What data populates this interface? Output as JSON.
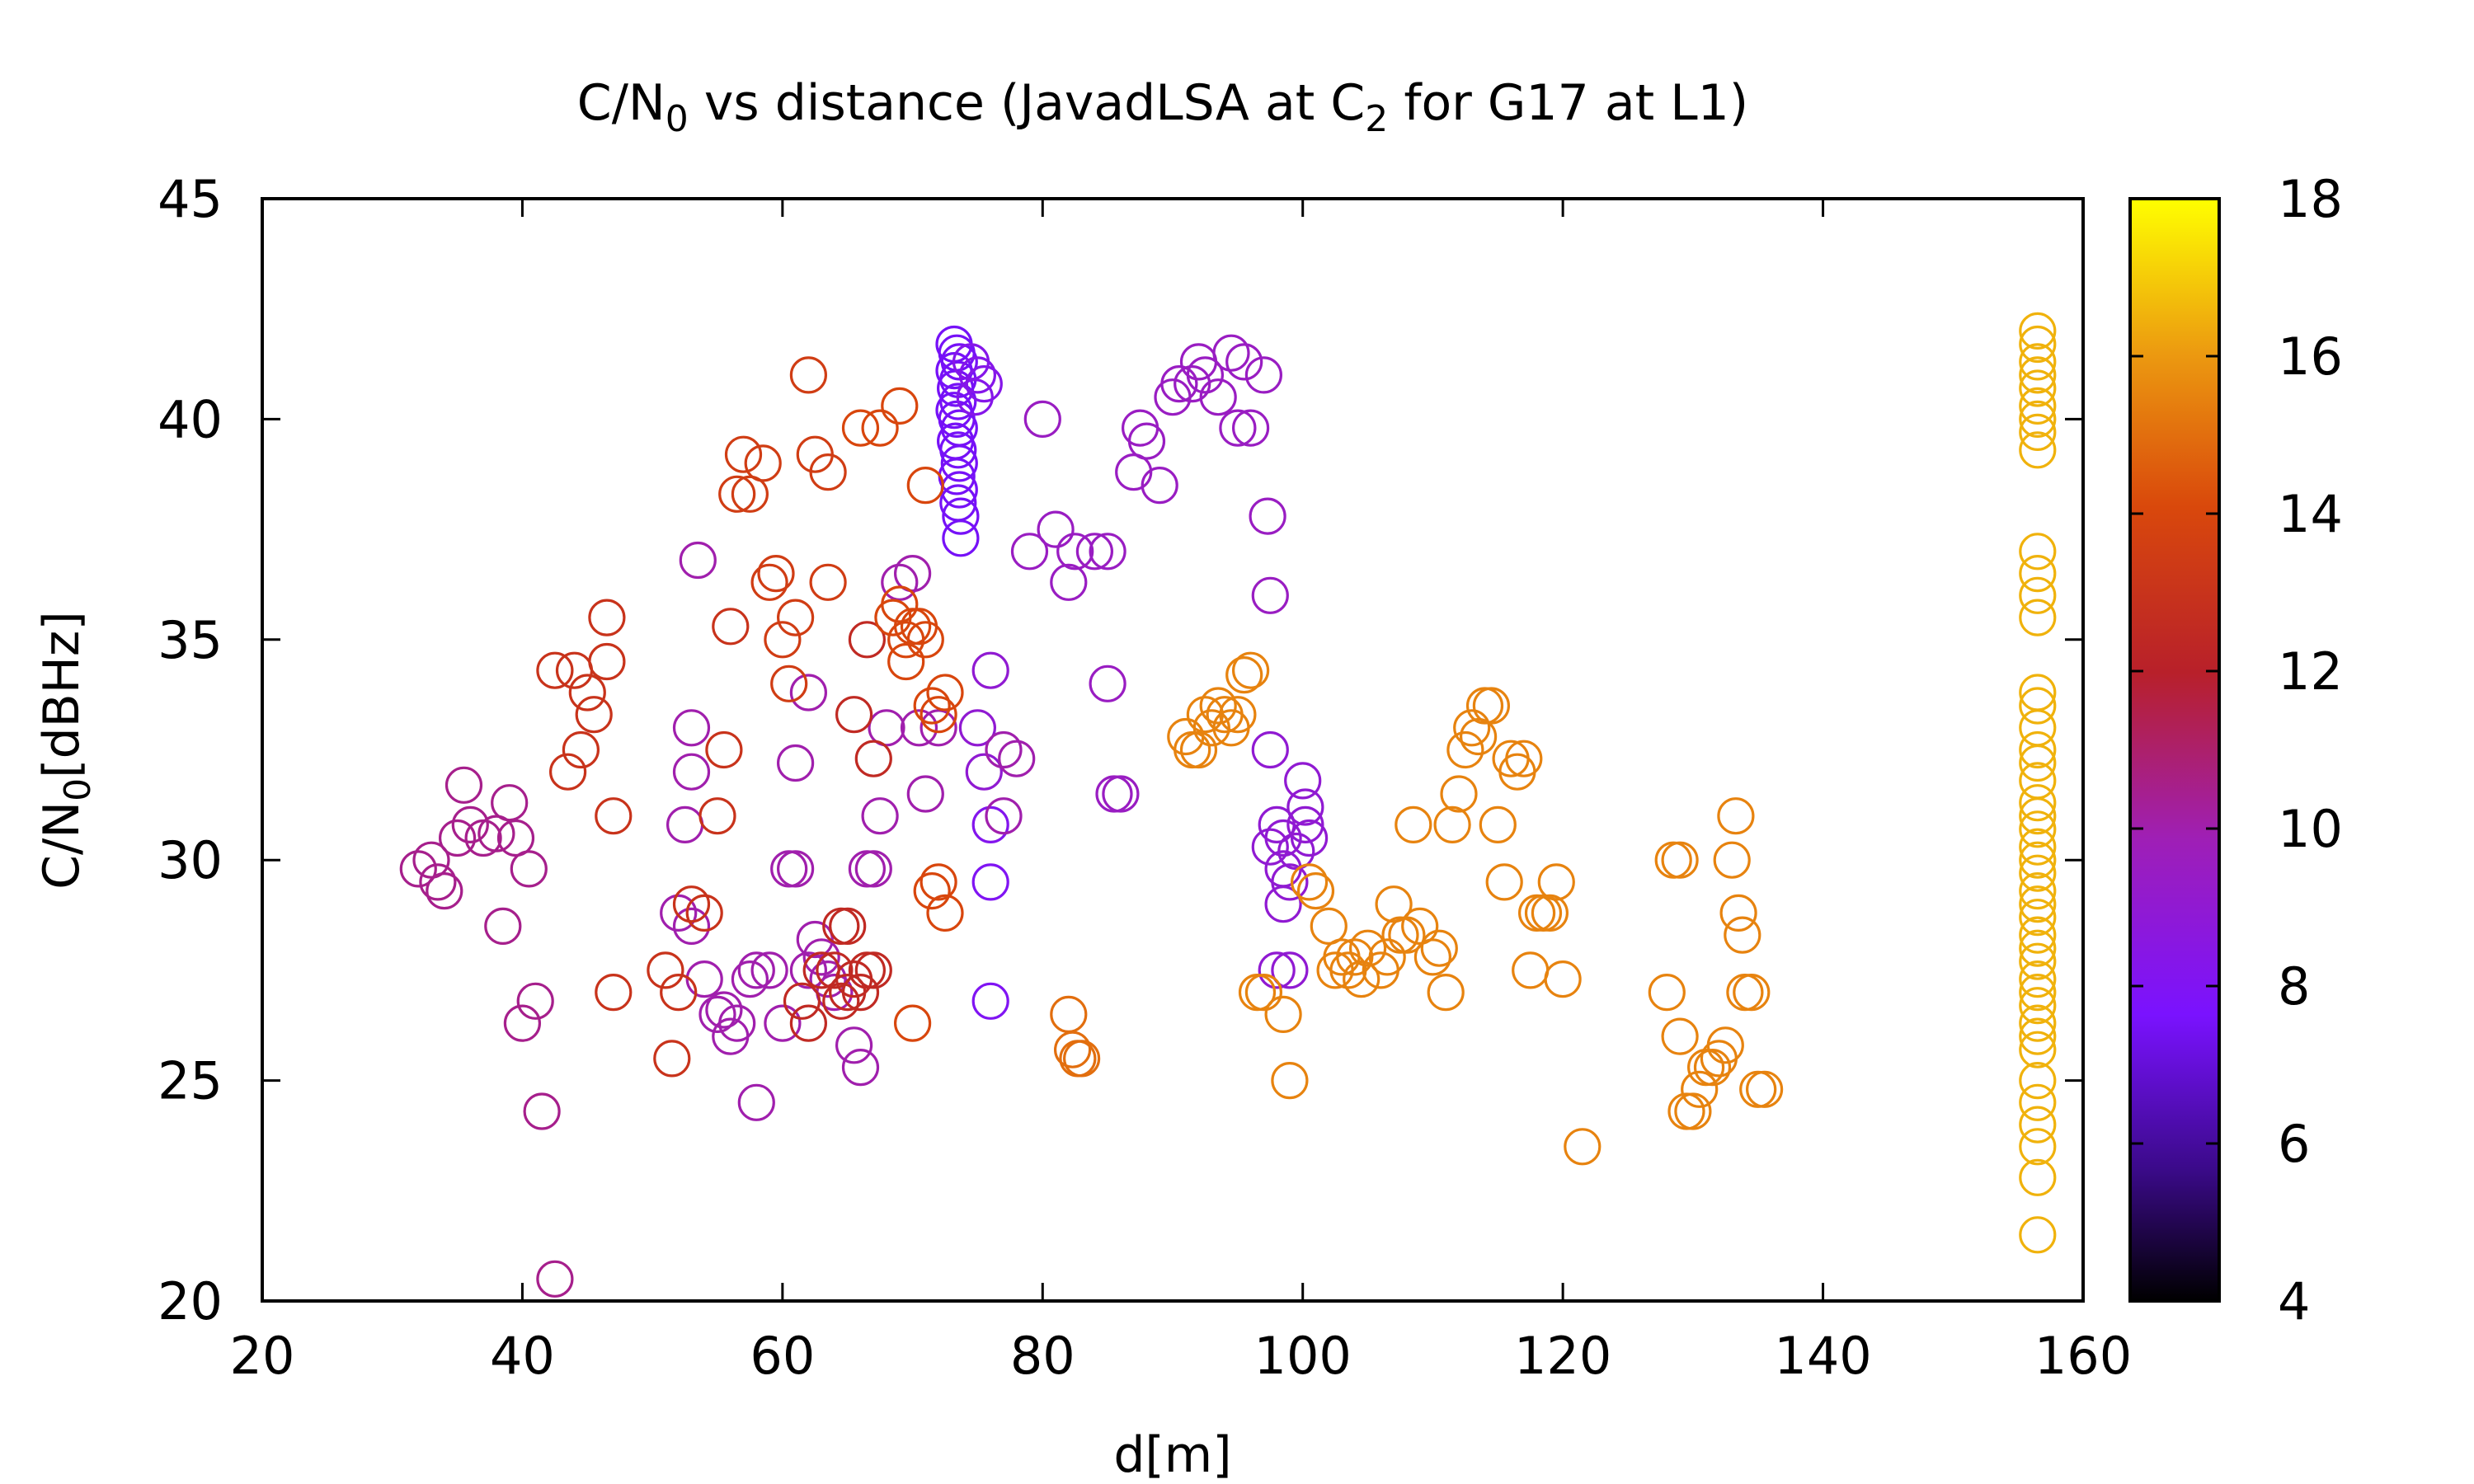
{
  "chart_data": {
    "type": "scatter",
    "title": {
      "prefix": "C/N",
      "sub1": "0",
      "mid": " vs distance (JavadLSA at C",
      "sub2": "2",
      "suffix": " for G17 at L1)"
    },
    "xlabel": "d[m]",
    "ylabel": {
      "prefix": "C/N",
      "sub": "0",
      "suffix": "[dBHz]"
    },
    "xlim": [
      20,
      160
    ],
    "ylim": [
      20,
      45
    ],
    "xticks": [
      20,
      40,
      60,
      80,
      100,
      120,
      140,
      160
    ],
    "yticks": [
      20,
      25,
      30,
      35,
      40,
      45
    ],
    "colorbar": {
      "range": [
        4,
        18
      ],
      "ticks": [
        4,
        6,
        8,
        10,
        12,
        14,
        16,
        18
      ],
      "palette": "black-purple-red-orange-yellow"
    },
    "grid": false,
    "marker": "open-circle",
    "points": [
      [
        73.2,
        41.7,
        7.5
      ],
      [
        73.4,
        41.5,
        7.5
      ],
      [
        73.6,
        41.3,
        7.5
      ],
      [
        73.2,
        41.1,
        7.5
      ],
      [
        73.5,
        40.9,
        7.5
      ],
      [
        73.3,
        40.7,
        7.5
      ],
      [
        73.5,
        40.4,
        7.5
      ],
      [
        73.2,
        40.2,
        7.5
      ],
      [
        73.4,
        40.0,
        7.5
      ],
      [
        73.6,
        39.8,
        7.5
      ],
      [
        73.3,
        39.5,
        7.5
      ],
      [
        73.5,
        39.3,
        7.5
      ],
      [
        73.6,
        39.0,
        7.5
      ],
      [
        73.4,
        38.7,
        7.5
      ],
      [
        73.6,
        38.4,
        7.5
      ],
      [
        73.5,
        38.1,
        7.5
      ],
      [
        73.7,
        37.8,
        7.5
      ],
      [
        73.7,
        37.3,
        7.5
      ],
      [
        74.5,
        41.3,
        8.3
      ],
      [
        75.0,
        41.0,
        8.3
      ],
      [
        75.5,
        40.8,
        8.3
      ],
      [
        74.8,
        40.5,
        8.3
      ],
      [
        80.0,
        40.0,
        9.5
      ],
      [
        79.0,
        37.0,
        9.5
      ],
      [
        81.0,
        37.5,
        9.5
      ],
      [
        82.0,
        36.3,
        9.5
      ],
      [
        82.5,
        37.0,
        9.5
      ],
      [
        84.0,
        37.0,
        9.5
      ],
      [
        85.0,
        37.0,
        9.5
      ],
      [
        85.0,
        34.0,
        9.5
      ],
      [
        85.5,
        31.5,
        9.5
      ],
      [
        86.0,
        31.5,
        9.5
      ],
      [
        87.0,
        38.8,
        9.5
      ],
      [
        88.0,
        39.5,
        9.5
      ],
      [
        89.0,
        38.5,
        9.5
      ],
      [
        87.5,
        39.8,
        9.5
      ],
      [
        90.0,
        40.5,
        9.5
      ],
      [
        90.5,
        40.8,
        9.5
      ],
      [
        91.5,
        40.8,
        9.5
      ],
      [
        92.5,
        41.0,
        9.5
      ],
      [
        92.0,
        41.3,
        9.5
      ],
      [
        93.5,
        40.5,
        9.5
      ],
      [
        94.5,
        41.5,
        9.5
      ],
      [
        95.5,
        41.3,
        9.5
      ],
      [
        95.0,
        39.8,
        9.5
      ],
      [
        96.0,
        39.8,
        9.5
      ],
      [
        97.0,
        41.0,
        9.5
      ],
      [
        97.3,
        37.8,
        9.5
      ],
      [
        97.5,
        36.0,
        9.5
      ],
      [
        97.5,
        32.5,
        9.0
      ],
      [
        98.0,
        30.8,
        9.0
      ],
      [
        97.5,
        30.3,
        9.0
      ],
      [
        98.5,
        30.5,
        9.0
      ],
      [
        98.5,
        29.8,
        9.0
      ],
      [
        99.0,
        29.5,
        9.0
      ],
      [
        98.5,
        29.0,
        9.0
      ],
      [
        100.0,
        31.8,
        9.0
      ],
      [
        100.2,
        31.2,
        9.0
      ],
      [
        100.5,
        30.5,
        9.0
      ],
      [
        99.5,
        30.2,
        9.0
      ],
      [
        100.2,
        30.8,
        9.0
      ],
      [
        98.0,
        27.5,
        9.0
      ],
      [
        99.0,
        27.5,
        9.0
      ],
      [
        76.0,
        34.3,
        9.0
      ],
      [
        76.0,
        30.8,
        8.2
      ],
      [
        76.0,
        29.5,
        8.0
      ],
      [
        76.0,
        26.8,
        8.0
      ],
      [
        75.0,
        33.0,
        9.0
      ],
      [
        75.5,
        32.0,
        9.0
      ],
      [
        77.0,
        32.5,
        10.0
      ],
      [
        77.0,
        31.0,
        10.0
      ],
      [
        78.0,
        32.3,
        10.0
      ],
      [
        32.0,
        29.8,
        10.5
      ],
      [
        33.0,
        30.0,
        10.5
      ],
      [
        34.0,
        29.3,
        10.5
      ],
      [
        33.5,
        29.5,
        10.5
      ],
      [
        35.0,
        30.5,
        10.5
      ],
      [
        35.5,
        31.7,
        10.5
      ],
      [
        36.0,
        30.8,
        10.5
      ],
      [
        37.0,
        30.5,
        10.5
      ],
      [
        38.0,
        30.6,
        10.5
      ],
      [
        39.0,
        31.3,
        10.5
      ],
      [
        39.5,
        30.5,
        10.5
      ],
      [
        40.5,
        29.8,
        10.5
      ],
      [
        38.5,
        28.5,
        10.5
      ],
      [
        40.0,
        26.3,
        10.5
      ],
      [
        41.0,
        26.8,
        10.5
      ],
      [
        41.5,
        24.3,
        10.5
      ],
      [
        42.5,
        20.5,
        10.5
      ],
      [
        53.5,
        36.8,
        10.0
      ],
      [
        53.0,
        33.0,
        10.0
      ],
      [
        53.0,
        32.0,
        10.0
      ],
      [
        52.5,
        30.8,
        10.0
      ],
      [
        52.0,
        28.8,
        10.0
      ],
      [
        53.0,
        28.5,
        10.0
      ],
      [
        54.0,
        27.3,
        10.0
      ],
      [
        55.0,
        26.5,
        10.0
      ],
      [
        55.5,
        26.6,
        10.0
      ],
      [
        56.5,
        26.3,
        10.0
      ],
      [
        56.0,
        26.0,
        10.0
      ],
      [
        57.5,
        27.3,
        10.0
      ],
      [
        58.0,
        27.5,
        10.0
      ],
      [
        59.0,
        27.5,
        10.0
      ],
      [
        60.0,
        26.3,
        10.0
      ],
      [
        58.0,
        24.5,
        10.0
      ],
      [
        61.0,
        32.2,
        10.0
      ],
      [
        62.0,
        33.8,
        10.0
      ],
      [
        60.5,
        29.8,
        10.0
      ],
      [
        61.0,
        29.8,
        10.0
      ],
      [
        62.5,
        28.2,
        10.0
      ],
      [
        63.0,
        27.8,
        10.0
      ],
      [
        63.5,
        27.3,
        10.0
      ],
      [
        62.0,
        27.5,
        10.0
      ],
      [
        64.0,
        27.0,
        10.0
      ],
      [
        65.5,
        25.8,
        10.0
      ],
      [
        66.0,
        25.3,
        10.0
      ],
      [
        66.5,
        29.8,
        10.0
      ],
      [
        67.0,
        29.8,
        10.0
      ],
      [
        67.5,
        31.0,
        10.0
      ],
      [
        68.0,
        33.0,
        10.0
      ],
      [
        69.0,
        36.3,
        10.0
      ],
      [
        70.0,
        36.5,
        10.0
      ],
      [
        70.5,
        33.0,
        10.0
      ],
      [
        71.0,
        31.5,
        10.0
      ],
      [
        72.0,
        33.0,
        10.0
      ],
      [
        44.0,
        34.3,
        13.0
      ],
      [
        45.0,
        33.8,
        13.0
      ],
      [
        45.5,
        33.3,
        13.0
      ],
      [
        46.5,
        35.5,
        13.0
      ],
      [
        46.5,
        34.5,
        13.0
      ],
      [
        44.5,
        32.5,
        13.0
      ],
      [
        43.5,
        32.0,
        13.0
      ],
      [
        42.5,
        34.3,
        13.0
      ],
      [
        47.0,
        31.0,
        13.0
      ],
      [
        47.0,
        27.0,
        13.0
      ],
      [
        51.0,
        27.5,
        13.0
      ],
      [
        52.0,
        27.0,
        13.0
      ],
      [
        51.5,
        25.5,
        13.0
      ],
      [
        53.0,
        29.0,
        13.0
      ],
      [
        54.0,
        28.8,
        13.0
      ],
      [
        55.0,
        31.0,
        13.0
      ],
      [
        55.5,
        32.5,
        13.0
      ],
      [
        56.0,
        35.3,
        13.0
      ],
      [
        56.5,
        38.3,
        13.5
      ],
      [
        57.5,
        38.3,
        13.5
      ],
      [
        57.0,
        39.2,
        13.5
      ],
      [
        58.5,
        39.0,
        13.5
      ],
      [
        59.0,
        36.3,
        13.5
      ],
      [
        59.5,
        36.5,
        13.5
      ],
      [
        60.0,
        35.0,
        13.5
      ],
      [
        60.5,
        34.0,
        13.5
      ],
      [
        61.0,
        35.5,
        13.5
      ],
      [
        62.0,
        41.0,
        13.5
      ],
      [
        62.5,
        39.2,
        13.5
      ],
      [
        63.5,
        38.8,
        13.5
      ],
      [
        63.5,
        36.3,
        13.5
      ],
      [
        63.0,
        27.5,
        12.5
      ],
      [
        64.0,
        27.5,
        12.5
      ],
      [
        64.5,
        28.5,
        12.5
      ],
      [
        65.0,
        28.5,
        12.5
      ],
      [
        65.5,
        27.3,
        12.5
      ],
      [
        66.0,
        27.0,
        12.5
      ],
      [
        66.5,
        27.5,
        12.5
      ],
      [
        67.0,
        27.5,
        12.5
      ],
      [
        61.5,
        26.8,
        12.5
      ],
      [
        62.0,
        26.3,
        12.5
      ],
      [
        64.5,
        26.8,
        12.5
      ],
      [
        65.0,
        27.0,
        12.5
      ],
      [
        65.5,
        33.3,
        12.5
      ],
      [
        66.5,
        35.0,
        12.5
      ],
      [
        67.0,
        32.3,
        12.5
      ],
      [
        66.0,
        39.8,
        14.0
      ],
      [
        67.5,
        39.8,
        14.0
      ],
      [
        69.0,
        40.3,
        14.0
      ],
      [
        68.5,
        35.5,
        14.0
      ],
      [
        69.0,
        35.8,
        14.0
      ],
      [
        69.5,
        35.0,
        14.0
      ],
      [
        70.0,
        35.3,
        14.0
      ],
      [
        69.5,
        34.5,
        14.0
      ],
      [
        70.5,
        35.3,
        14.0
      ],
      [
        71.0,
        35.0,
        14.0
      ],
      [
        71.0,
        38.5,
        14.0
      ],
      [
        71.5,
        33.5,
        14.0
      ],
      [
        72.0,
        33.3,
        14.0
      ],
      [
        72.5,
        33.8,
        14.0
      ],
      [
        70.0,
        26.3,
        14.0
      ],
      [
        71.5,
        29.3,
        14.0
      ],
      [
        72.0,
        29.5,
        14.0
      ],
      [
        72.5,
        28.8,
        14.0
      ],
      [
        82.0,
        26.5,
        15.0
      ],
      [
        82.3,
        25.7,
        15.0
      ],
      [
        82.7,
        25.5,
        15.0
      ],
      [
        83.0,
        25.5,
        15.0
      ],
      [
        91.0,
        32.8,
        15.5
      ],
      [
        91.5,
        32.5,
        15.5
      ],
      [
        92.0,
        32.5,
        15.5
      ],
      [
        92.5,
        33.3,
        15.5
      ],
      [
        93.0,
        33.0,
        15.5
      ],
      [
        93.5,
        33.5,
        15.5
      ],
      [
        94.0,
        33.3,
        15.5
      ],
      [
        94.5,
        33.0,
        15.5
      ],
      [
        95.0,
        33.3,
        15.5
      ],
      [
        95.5,
        34.2,
        15.5
      ],
      [
        96.0,
        34.3,
        15.5
      ],
      [
        96.5,
        27.0,
        15.5
      ],
      [
        97.0,
        27.0,
        15.5
      ],
      [
        98.5,
        26.5,
        15.5
      ],
      [
        99.0,
        25.0,
        15.5
      ],
      [
        100.5,
        29.5,
        15.5
      ],
      [
        101.0,
        29.3,
        15.5
      ],
      [
        102.0,
        28.5,
        15.5
      ],
      [
        102.5,
        27.5,
        15.5
      ],
      [
        103.0,
        27.8,
        15.5
      ],
      [
        103.5,
        27.5,
        15.5
      ],
      [
        104.0,
        27.8,
        15.5
      ],
      [
        104.5,
        27.3,
        15.5
      ],
      [
        105.0,
        28.0,
        15.5
      ],
      [
        106.0,
        27.5,
        15.5
      ],
      [
        106.5,
        27.8,
        15.5
      ],
      [
        107.0,
        29.0,
        15.5
      ],
      [
        107.5,
        28.3,
        15.5
      ],
      [
        108.0,
        28.3,
        15.5
      ],
      [
        108.5,
        30.8,
        15.5
      ],
      [
        109.0,
        28.5,
        15.5
      ],
      [
        110.0,
        27.8,
        15.5
      ],
      [
        110.5,
        28.0,
        15.5
      ],
      [
        111.0,
        27.0,
        15.5
      ],
      [
        111.5,
        30.8,
        15.5
      ],
      [
        112.0,
        31.5,
        15.5
      ],
      [
        112.5,
        32.5,
        15.5
      ],
      [
        113.0,
        33.0,
        15.5
      ],
      [
        113.5,
        32.8,
        15.5
      ],
      [
        114.0,
        33.5,
        15.5
      ],
      [
        114.5,
        33.5,
        15.5
      ],
      [
        115.0,
        30.8,
        15.5
      ],
      [
        115.5,
        29.5,
        15.5
      ],
      [
        116.0,
        32.3,
        15.5
      ],
      [
        116.5,
        32.0,
        15.5
      ],
      [
        117.0,
        32.3,
        15.5
      ],
      [
        117.5,
        27.5,
        15.5
      ],
      [
        118.0,
        28.8,
        15.5
      ],
      [
        118.5,
        28.8,
        15.5
      ],
      [
        119.0,
        28.8,
        15.5
      ],
      [
        119.5,
        29.5,
        15.5
      ],
      [
        120.0,
        27.3,
        15.5
      ],
      [
        121.5,
        23.5,
        15.5
      ],
      [
        128.0,
        27.0,
        15.5
      ],
      [
        128.5,
        30.0,
        15.5
      ],
      [
        129.0,
        30.0,
        15.5
      ],
      [
        129.0,
        26.0,
        15.5
      ],
      [
        129.5,
        24.3,
        15.5
      ],
      [
        130.0,
        24.3,
        15.5
      ],
      [
        130.5,
        24.8,
        15.5
      ],
      [
        131.0,
        25.3,
        15.5
      ],
      [
        131.5,
        25.3,
        15.5
      ],
      [
        132.0,
        25.5,
        15.5
      ],
      [
        132.5,
        25.8,
        15.5
      ],
      [
        133.0,
        30.0,
        15.5
      ],
      [
        133.3,
        31.0,
        15.5
      ],
      [
        133.5,
        28.8,
        15.5
      ],
      [
        133.8,
        28.3,
        15.5
      ],
      [
        134.0,
        27.0,
        15.5
      ],
      [
        134.5,
        27.0,
        15.5
      ],
      [
        135.0,
        24.8,
        15.5
      ],
      [
        135.5,
        24.8,
        15.5
      ],
      [
        156.5,
        42.0,
        16.5
      ],
      [
        156.5,
        41.7,
        16.5
      ],
      [
        156.5,
        41.3,
        16.5
      ],
      [
        156.5,
        41.0,
        16.5
      ],
      [
        156.5,
        40.7,
        16.5
      ],
      [
        156.5,
        40.3,
        16.5
      ],
      [
        156.5,
        40.0,
        16.5
      ],
      [
        156.5,
        39.7,
        16.5
      ],
      [
        156.5,
        39.3,
        16.5
      ],
      [
        156.5,
        37.0,
        16.5
      ],
      [
        156.5,
        36.5,
        16.5
      ],
      [
        156.5,
        36.0,
        16.5
      ],
      [
        156.5,
        35.5,
        16.5
      ],
      [
        156.5,
        33.8,
        16.5
      ],
      [
        156.5,
        33.5,
        16.5
      ],
      [
        156.5,
        33.0,
        16.5
      ],
      [
        156.5,
        32.5,
        16.5
      ],
      [
        156.5,
        32.2,
        16.5
      ],
      [
        156.5,
        31.8,
        16.5
      ],
      [
        156.5,
        31.3,
        16.5
      ],
      [
        156.5,
        31.0,
        16.5
      ],
      [
        156.5,
        30.7,
        16.5
      ],
      [
        156.5,
        30.3,
        16.5
      ],
      [
        156.5,
        30.0,
        16.5
      ],
      [
        156.5,
        29.7,
        16.5
      ],
      [
        156.5,
        29.3,
        16.5
      ],
      [
        156.5,
        29.0,
        16.5
      ],
      [
        156.5,
        28.7,
        16.5
      ],
      [
        156.5,
        28.3,
        16.5
      ],
      [
        156.5,
        28.0,
        16.5
      ],
      [
        156.5,
        27.7,
        16.5
      ],
      [
        156.5,
        27.3,
        16.5
      ],
      [
        156.5,
        27.0,
        16.5
      ],
      [
        156.5,
        26.7,
        16.5
      ],
      [
        156.5,
        26.3,
        16.5
      ],
      [
        156.5,
        26.0,
        16.5
      ],
      [
        156.5,
        25.7,
        16.5
      ],
      [
        156.5,
        25.0,
        16.5
      ],
      [
        156.5,
        24.5,
        16.5
      ],
      [
        156.5,
        24.0,
        16.5
      ],
      [
        156.5,
        23.5,
        16.5
      ],
      [
        156.5,
        22.8,
        16.5
      ],
      [
        156.5,
        21.5,
        16.5
      ]
    ]
  }
}
